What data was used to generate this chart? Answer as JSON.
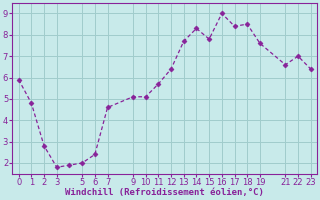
{
  "x": [
    0,
    1,
    2,
    3,
    4,
    5,
    6,
    7,
    9,
    10,
    11,
    12,
    13,
    14,
    15,
    16,
    17,
    18,
    19,
    21,
    22,
    23
  ],
  "y": [
    5.9,
    4.8,
    2.8,
    1.8,
    1.9,
    2.0,
    2.4,
    4.6,
    5.1,
    5.1,
    5.7,
    6.4,
    7.7,
    8.3,
    7.8,
    9.0,
    8.4,
    8.5,
    7.6,
    6.6,
    7.0,
    6.4
  ],
  "line_color": "#882299",
  "marker": "D",
  "marker_size": 2.5,
  "bg_color": "#c8eaea",
  "grid_color": "#a0cccc",
  "xlabel": "Windchill (Refroidissement éolien,°C)",
  "xlim": [
    -0.5,
    23.5
  ],
  "ylim": [
    1.5,
    9.5
  ],
  "yticks": [
    2,
    3,
    4,
    5,
    6,
    7,
    8,
    9
  ],
  "xticks": [
    0,
    1,
    2,
    3,
    5,
    6,
    7,
    9,
    10,
    11,
    12,
    13,
    14,
    15,
    16,
    17,
    18,
    19,
    21,
    22,
    23
  ],
  "label_color": "#882299",
  "xlabel_fontsize": 6.5,
  "tick_fontsize": 6.0
}
